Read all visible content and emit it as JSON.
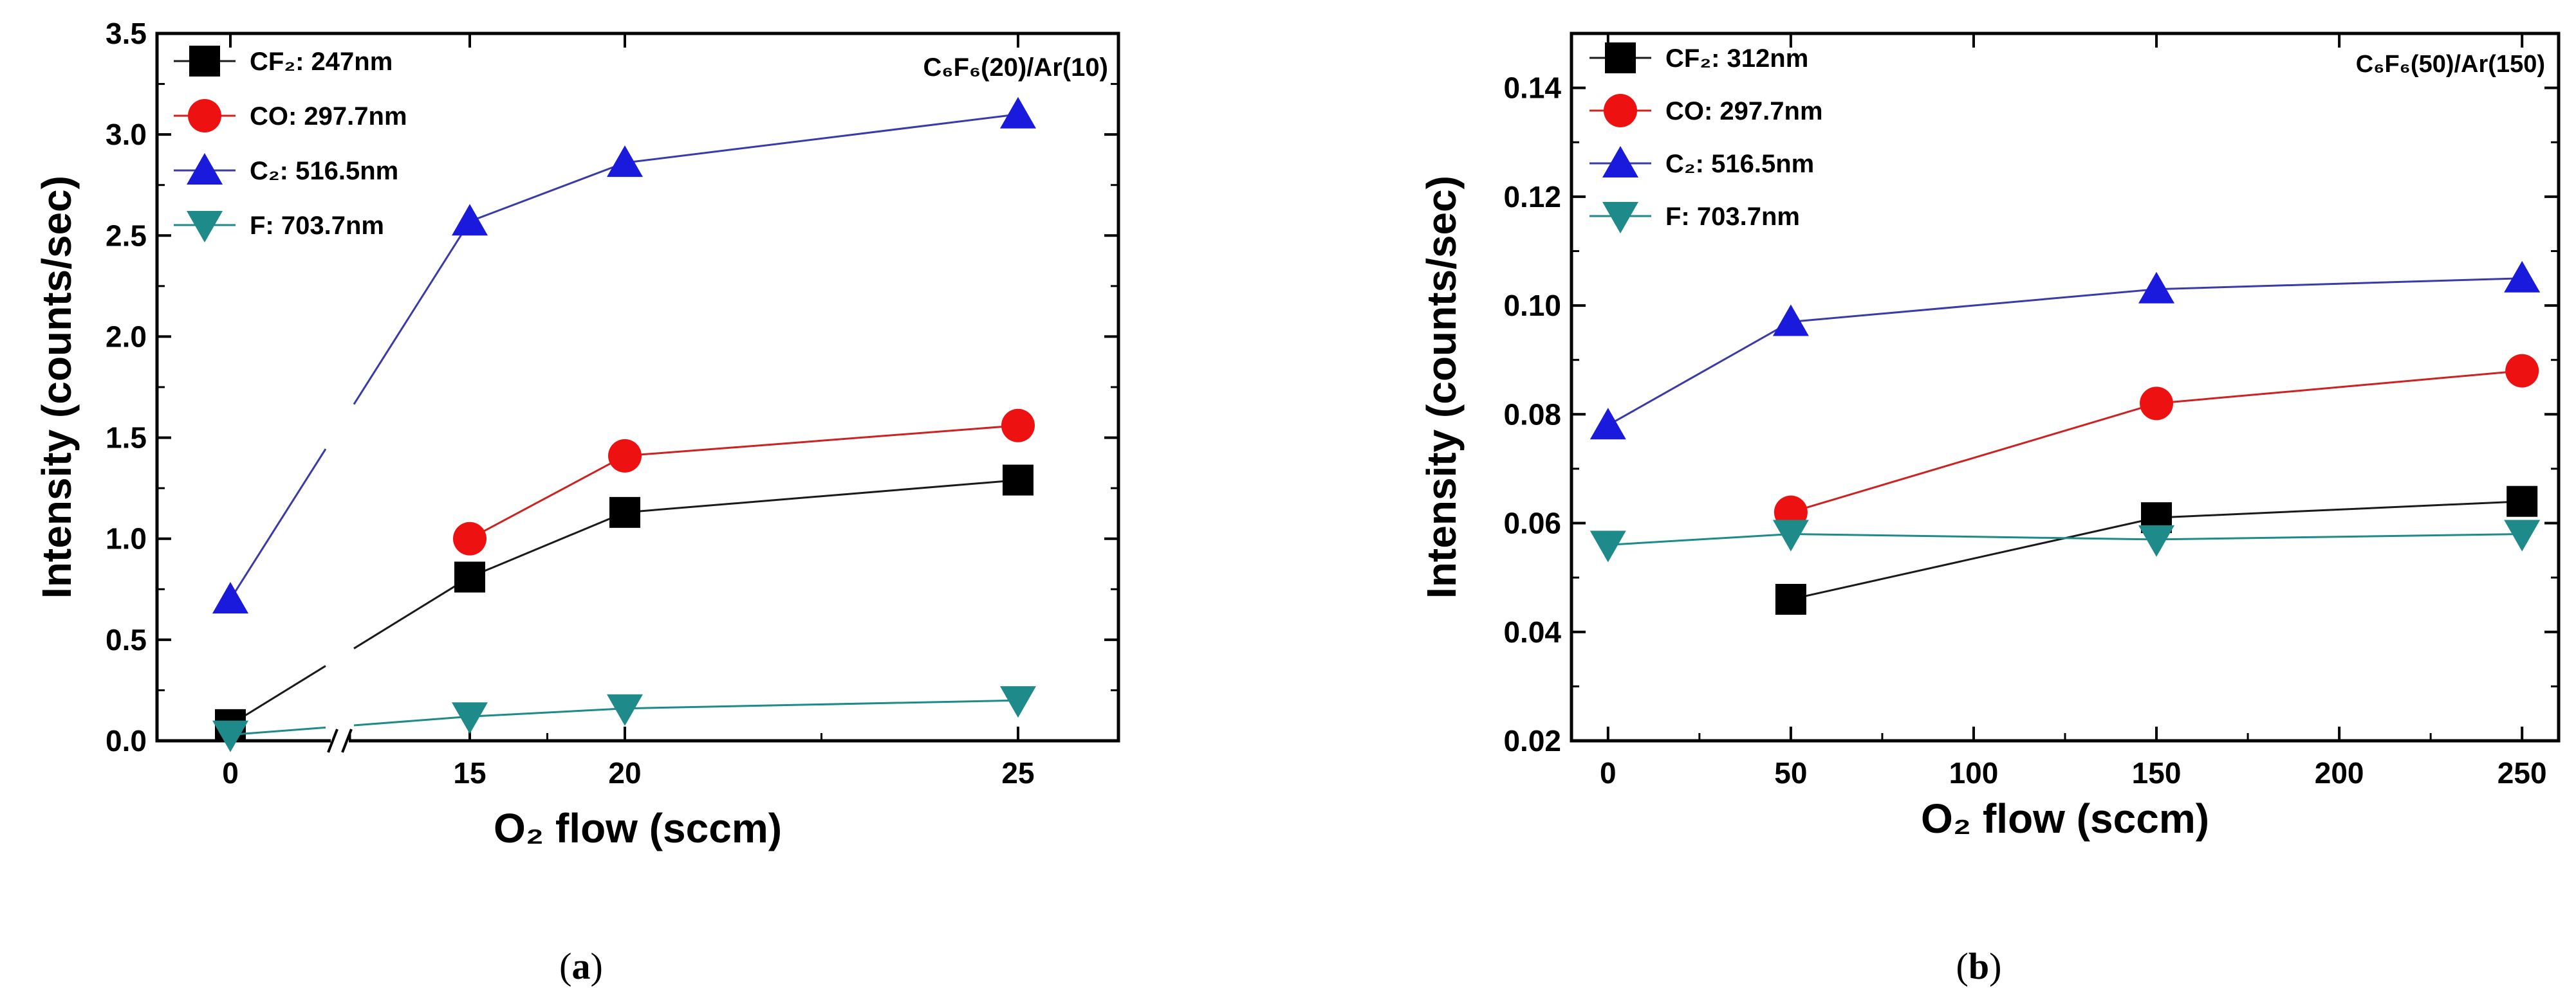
{
  "chart_data": [
    {
      "type": "line",
      "panel_label": "a",
      "xlabel": "O₂ flow (sccm)",
      "ylabel": "Intensity (counts/sec)",
      "annotation": "C₆F₆(20)/Ar(10)",
      "axis_break": "between 0 and 15",
      "categories": [
        "0",
        "15",
        "20",
        "25"
      ],
      "x": [
        0,
        15,
        20,
        25
      ],
      "ylim": [
        0,
        3.5
      ],
      "yticks": [
        0.0,
        0.5,
        1.0,
        1.5,
        2.0,
        2.5,
        3.0,
        3.5
      ],
      "ytick_labels": [
        "0.0",
        "0.5",
        "1.0",
        "1.5",
        "2.0",
        "2.5",
        "3.0",
        "3.5"
      ],
      "grid": false,
      "legend_position": "top-left",
      "series": [
        {
          "name": "CF₂: 247nm",
          "marker": "square",
          "color": "#000000",
          "line_color": "#1a1a1a",
          "values": [
            0.08,
            0.81,
            1.13,
            1.29
          ]
        },
        {
          "name": "CO: 297.7nm",
          "marker": "circle",
          "color": "#ee1111",
          "line_color": "#cc2222",
          "values": [
            null,
            1.0,
            1.41,
            1.56
          ]
        },
        {
          "name": "C₂: 516.5nm",
          "marker": "triangle-up",
          "color": "#1a1adc",
          "line_color": "#3a3aa8",
          "values": [
            0.7,
            2.57,
            2.86,
            3.1
          ]
        },
        {
          "name": "F: 703.7nm",
          "marker": "triangle-down",
          "color": "#1e8a8a",
          "line_color": "#1e8a8a",
          "values": [
            0.03,
            0.12,
            0.16,
            0.2
          ]
        }
      ]
    },
    {
      "type": "line",
      "panel_label": "b",
      "xlabel": "O₂ flow (sccm)",
      "ylabel": "Intensity (counts/sec)",
      "annotation": "C₆F₆(50)/Ar(150)",
      "x": [
        0,
        50,
        150,
        250
      ],
      "xlim": [
        -10,
        260
      ],
      "xticks": [
        0,
        50,
        100,
        150,
        200,
        250
      ],
      "xtick_labels": [
        "0",
        "50",
        "100",
        "150",
        "200",
        "250"
      ],
      "ylim": [
        0.02,
        0.15
      ],
      "yticks": [
        0.02,
        0.04,
        0.06,
        0.08,
        0.1,
        0.12,
        0.14
      ],
      "ytick_labels": [
        "0.02",
        "0.04",
        "0.06",
        "0.08",
        "0.10",
        "0.12",
        "0.14"
      ],
      "grid": false,
      "legend_position": "top-left",
      "series": [
        {
          "name": "CF₂: 312nm",
          "marker": "square",
          "color": "#000000",
          "line_color": "#1a1a1a",
          "values": [
            null,
            0.046,
            0.061,
            0.064
          ]
        },
        {
          "name": "CO: 297.7nm",
          "marker": "circle",
          "color": "#ee1111",
          "line_color": "#cc2222",
          "values": [
            null,
            0.062,
            0.082,
            0.088
          ]
        },
        {
          "name": "C₂: 516.5nm",
          "marker": "triangle-up",
          "color": "#1a1adc",
          "line_color": "#3a3aa8",
          "values": [
            0.078,
            0.097,
            0.103,
            0.105
          ]
        },
        {
          "name": "F: 703.7nm",
          "marker": "triangle-down",
          "color": "#1e8a8a",
          "line_color": "#1e8a8a",
          "values": [
            0.056,
            0.058,
            0.057,
            0.058
          ]
        }
      ]
    }
  ],
  "captions": {
    "a_open": "(",
    "a_letter": "a",
    "a_close": ")",
    "b_open": "(",
    "b_letter": "b",
    "b_close": ")"
  }
}
